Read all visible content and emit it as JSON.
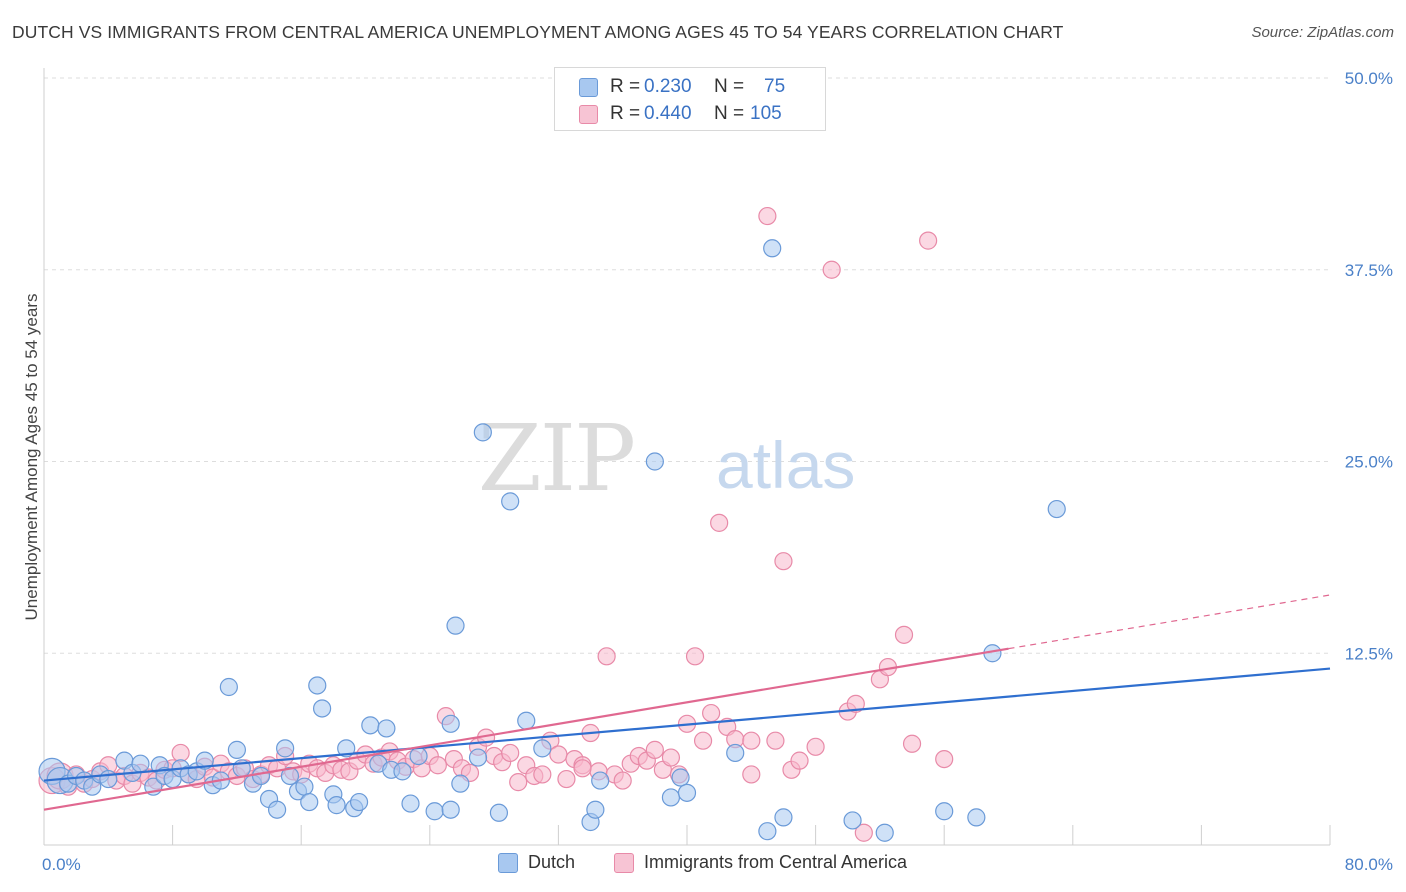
{
  "title": "DUTCH VS IMMIGRANTS FROM CENTRAL AMERICA UNEMPLOYMENT AMONG AGES 45 TO 54 YEARS CORRELATION CHART",
  "source": "Source: ZipAtlas.com",
  "watermark": {
    "zip": "ZIP",
    "atlas": "atlas"
  },
  "colors": {
    "dutch_fill": "#a8c8f0",
    "dutch_stroke": "#6a9ad8",
    "dutch_line": "#2f6fcf",
    "ca_fill": "#f7b8cc",
    "ca_stroke": "#e88aa8",
    "ca_line": "#e06890",
    "tick_text": "#4a80c8",
    "grid": "#dddddd"
  },
  "legend": {
    "rows": [
      {
        "r_label": "R =",
        "r_value": "0.230",
        "n_label": "N =",
        "n_value": "75"
      },
      {
        "r_label": "R =",
        "r_value": "0.440",
        "n_label": "N =",
        "n_value": "105"
      }
    ]
  },
  "bottom_legend": {
    "dutch": "Dutch",
    "ca": "Immigrants from Central America"
  },
  "chart_data": {
    "type": "scatter",
    "title": "DUTCH VS IMMIGRANTS FROM CENTRAL AMERICA UNEMPLOYMENT AMONG AGES 45 TO 54 YEARS CORRELATION CHART",
    "xlabel": "",
    "ylabel": "Unemployment Among Ages 45 to 54 years",
    "xlim": [
      0,
      80
    ],
    "ylim": [
      0,
      50
    ],
    "x_tick_labels": [
      "0.0%",
      "80.0%"
    ],
    "y_ticks": [
      12.5,
      25.0,
      37.5,
      50.0
    ],
    "y_tick_labels": [
      "12.5%",
      "25.0%",
      "37.5%",
      "50.0%"
    ],
    "grid": true,
    "legend_position": "top-center",
    "series": [
      {
        "name": "Dutch",
        "r": 0.23,
        "n": 75,
        "trend": {
          "x0": 0,
          "y0": 4.2,
          "x1": 80,
          "y1": 11.5,
          "dashed_from": null
        },
        "points": [
          [
            0.5,
            4.8
          ],
          [
            1.0,
            4.2
          ],
          [
            1.5,
            4.0
          ],
          [
            2.0,
            4.5
          ],
          [
            2.5,
            4.2
          ],
          [
            3.0,
            3.8
          ],
          [
            3.5,
            4.6
          ],
          [
            4.0,
            4.3
          ],
          [
            5.0,
            5.5
          ],
          [
            5.5,
            4.7
          ],
          [
            6.0,
            5.3
          ],
          [
            6.8,
            3.8
          ],
          [
            7.2,
            5.2
          ],
          [
            7.5,
            4.5
          ],
          [
            8.0,
            4.3
          ],
          [
            8.5,
            5.0
          ],
          [
            9.0,
            4.6
          ],
          [
            9.5,
            4.8
          ],
          [
            10.0,
            5.5
          ],
          [
            10.5,
            3.9
          ],
          [
            11.0,
            4.2
          ],
          [
            11.5,
            10.3
          ],
          [
            12.0,
            6.2
          ],
          [
            12.3,
            5.0
          ],
          [
            13.0,
            4.0
          ],
          [
            13.5,
            4.5
          ],
          [
            14.0,
            3.0
          ],
          [
            14.5,
            2.3
          ],
          [
            15.0,
            6.3
          ],
          [
            15.3,
            4.5
          ],
          [
            15.8,
            3.5
          ],
          [
            16.2,
            3.8
          ],
          [
            16.5,
            2.8
          ],
          [
            17.0,
            10.4
          ],
          [
            17.3,
            8.9
          ],
          [
            18.0,
            3.3
          ],
          [
            18.2,
            2.6
          ],
          [
            18.8,
            6.3
          ],
          [
            19.3,
            2.4
          ],
          [
            19.6,
            2.8
          ],
          [
            20.3,
            7.8
          ],
          [
            20.8,
            5.3
          ],
          [
            21.3,
            7.6
          ],
          [
            21.6,
            4.9
          ],
          [
            22.3,
            4.8
          ],
          [
            22.8,
            2.7
          ],
          [
            23.3,
            5.8
          ],
          [
            24.3,
            2.2
          ],
          [
            25.3,
            2.3
          ],
          [
            25.6,
            14.3
          ],
          [
            25.3,
            7.9
          ],
          [
            25.9,
            4.0
          ],
          [
            27.0,
            5.7
          ],
          [
            27.3,
            26.9
          ],
          [
            28.3,
            2.1
          ],
          [
            29.0,
            22.4
          ],
          [
            30.0,
            8.1
          ],
          [
            31.0,
            6.3
          ],
          [
            34.0,
            1.5
          ],
          [
            34.3,
            2.3
          ],
          [
            34.6,
            4.2
          ],
          [
            38.0,
            25.0
          ],
          [
            39.0,
            3.1
          ],
          [
            39.6,
            4.4
          ],
          [
            40.0,
            3.4
          ],
          [
            43.0,
            6.0
          ],
          [
            45.0,
            0.9
          ],
          [
            45.3,
            38.9
          ],
          [
            46.0,
            1.8
          ],
          [
            50.3,
            1.6
          ],
          [
            52.3,
            0.8
          ],
          [
            56.0,
            2.2
          ],
          [
            58.0,
            1.8
          ],
          [
            59.0,
            12.5
          ],
          [
            63.0,
            21.9
          ]
        ]
      },
      {
        "name": "Immigrants from Central America",
        "r": 0.44,
        "n": 105,
        "trend": {
          "x0": 0,
          "y0": 2.3,
          "x1": 80,
          "y1": 16.3,
          "dashed_from": 60
        },
        "points": [
          [
            0.5,
            4.2
          ],
          [
            1.0,
            4.5
          ],
          [
            1.5,
            3.8
          ],
          [
            2.0,
            4.6
          ],
          [
            2.5,
            4.0
          ],
          [
            3.0,
            4.3
          ],
          [
            3.5,
            4.8
          ],
          [
            4.0,
            5.2
          ],
          [
            4.5,
            4.2
          ],
          [
            5.0,
            4.5
          ],
          [
            5.5,
            4.0
          ],
          [
            6.0,
            4.7
          ],
          [
            6.5,
            4.4
          ],
          [
            7.0,
            4.2
          ],
          [
            7.5,
            4.9
          ],
          [
            8.0,
            5.0
          ],
          [
            8.5,
            6.0
          ],
          [
            9.0,
            4.6
          ],
          [
            9.5,
            4.3
          ],
          [
            10.0,
            5.1
          ],
          [
            10.5,
            4.4
          ],
          [
            11.0,
            5.3
          ],
          [
            11.5,
            4.8
          ],
          [
            12.0,
            4.5
          ],
          [
            12.5,
            5.0
          ],
          [
            13.0,
            4.3
          ],
          [
            13.5,
            4.6
          ],
          [
            14.0,
            5.2
          ],
          [
            14.5,
            5.0
          ],
          [
            15.0,
            5.8
          ],
          [
            15.5,
            4.8
          ],
          [
            16.0,
            4.6
          ],
          [
            16.5,
            5.3
          ],
          [
            17.0,
            5.0
          ],
          [
            17.5,
            4.7
          ],
          [
            18.0,
            5.2
          ],
          [
            18.5,
            4.9
          ],
          [
            19.0,
            4.8
          ],
          [
            19.5,
            5.5
          ],
          [
            20.0,
            5.9
          ],
          [
            20.5,
            5.3
          ],
          [
            21.0,
            5.7
          ],
          [
            21.5,
            6.1
          ],
          [
            22.0,
            5.5
          ],
          [
            22.5,
            5.1
          ],
          [
            23.0,
            5.6
          ],
          [
            23.5,
            5.0
          ],
          [
            24.0,
            5.8
          ],
          [
            24.5,
            5.2
          ],
          [
            25.0,
            8.4
          ],
          [
            25.5,
            5.6
          ],
          [
            26.0,
            5.0
          ],
          [
            26.5,
            4.7
          ],
          [
            27.0,
            6.4
          ],
          [
            27.5,
            7.0
          ],
          [
            28.0,
            5.8
          ],
          [
            28.5,
            5.4
          ],
          [
            29.0,
            6.0
          ],
          [
            29.5,
            4.1
          ],
          [
            30.0,
            5.2
          ],
          [
            30.5,
            4.5
          ],
          [
            31.0,
            4.6
          ],
          [
            31.5,
            6.8
          ],
          [
            32.0,
            5.9
          ],
          [
            32.5,
            4.3
          ],
          [
            33.0,
            5.6
          ],
          [
            33.5,
            5.2
          ],
          [
            34.0,
            7.3
          ],
          [
            34.5,
            4.8
          ],
          [
            35.0,
            12.3
          ],
          [
            35.5,
            4.6
          ],
          [
            36.0,
            4.2
          ],
          [
            36.5,
            5.3
          ],
          [
            37.0,
            5.8
          ],
          [
            37.5,
            5.5
          ],
          [
            38.0,
            6.2
          ],
          [
            38.5,
            4.9
          ],
          [
            39.0,
            5.7
          ],
          [
            39.5,
            4.6
          ],
          [
            40.0,
            7.9
          ],
          [
            40.5,
            12.3
          ],
          [
            41.0,
            6.8
          ],
          [
            41.5,
            8.6
          ],
          [
            42.0,
            21.0
          ],
          [
            42.5,
            7.7
          ],
          [
            43.0,
            6.9
          ],
          [
            44.0,
            6.8
          ],
          [
            45.0,
            41.0
          ],
          [
            45.5,
            6.8
          ],
          [
            46.0,
            18.5
          ],
          [
            46.5,
            4.9
          ],
          [
            48.0,
            6.4
          ],
          [
            49.0,
            37.5
          ],
          [
            50.0,
            8.7
          ],
          [
            50.5,
            9.2
          ],
          [
            51.0,
            0.8
          ],
          [
            52.0,
            10.8
          ],
          [
            52.5,
            11.6
          ],
          [
            53.5,
            13.7
          ],
          [
            54.0,
            6.6
          ],
          [
            55.0,
            39.4
          ],
          [
            56.0,
            5.6
          ],
          [
            47.0,
            5.5
          ],
          [
            33.5,
            5.0
          ],
          [
            44.0,
            4.6
          ]
        ]
      }
    ]
  }
}
